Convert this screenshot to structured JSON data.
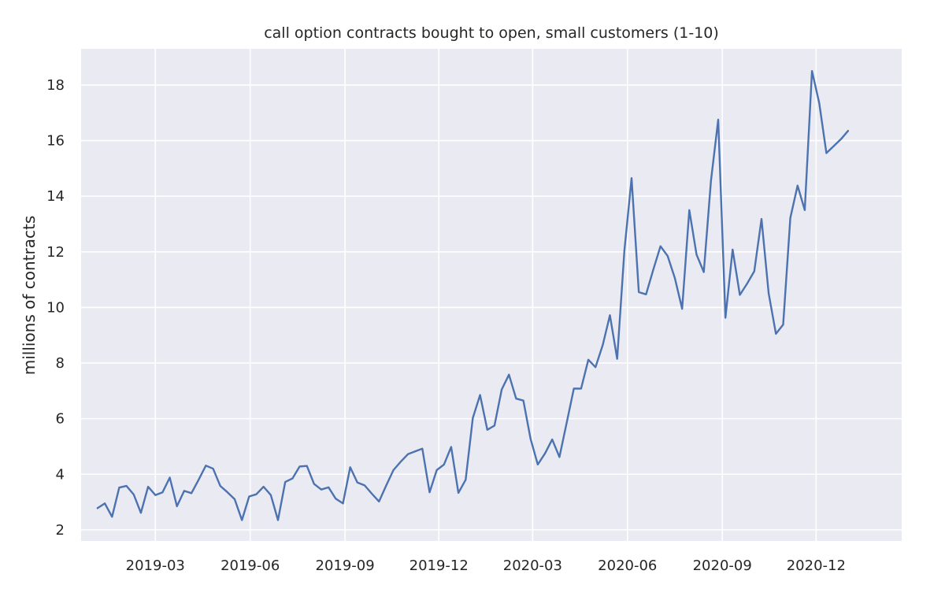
{
  "chart_data": {
    "type": "line",
    "title": "call option contracts bought to open, small customers (1-10)",
    "xlabel": "",
    "ylabel": "millions of contracts",
    "ylim": [
      1.6,
      19.3
    ],
    "xlim": [
      "2018-12-19",
      "2021-02-22"
    ],
    "yticks": [
      2,
      4,
      6,
      8,
      10,
      12,
      14,
      16,
      18
    ],
    "xticks": [
      {
        "date": "2019-03-01",
        "label": "2019-03"
      },
      {
        "date": "2019-06-01",
        "label": "2019-06"
      },
      {
        "date": "2019-09-01",
        "label": "2019-09"
      },
      {
        "date": "2019-12-01",
        "label": "2019-12"
      },
      {
        "date": "2020-03-01",
        "label": "2020-03"
      },
      {
        "date": "2020-06-01",
        "label": "2020-06"
      },
      {
        "date": "2020-09-01",
        "label": "2020-09"
      },
      {
        "date": "2020-12-01",
        "label": "2020-12"
      }
    ],
    "grid": true,
    "colors": {
      "background": "#eaeaf2",
      "grid": "#ffffff",
      "line": "#4c72b0",
      "text": "#262626"
    },
    "series": [
      {
        "name": "small customers (1-10)",
        "x": [
          "2019-01-04",
          "2019-01-11",
          "2019-01-18",
          "2019-01-25",
          "2019-02-01",
          "2019-02-08",
          "2019-02-15",
          "2019-02-22",
          "2019-03-01",
          "2019-03-08",
          "2019-03-15",
          "2019-03-22",
          "2019-03-29",
          "2019-04-05",
          "2019-04-12",
          "2019-04-19",
          "2019-04-26",
          "2019-05-03",
          "2019-05-10",
          "2019-05-17",
          "2019-05-24",
          "2019-05-31",
          "2019-06-07",
          "2019-06-14",
          "2019-06-21",
          "2019-06-28",
          "2019-07-05",
          "2019-07-12",
          "2019-07-19",
          "2019-07-26",
          "2019-08-02",
          "2019-08-09",
          "2019-08-16",
          "2019-08-23",
          "2019-08-30",
          "2019-09-06",
          "2019-09-13",
          "2019-09-20",
          "2019-09-27",
          "2019-10-04",
          "2019-10-11",
          "2019-10-18",
          "2019-10-25",
          "2019-11-01",
          "2019-11-08",
          "2019-11-15",
          "2019-11-22",
          "2019-11-29",
          "2019-12-06",
          "2019-12-13",
          "2019-12-20",
          "2019-12-27",
          "2020-01-03",
          "2020-01-10",
          "2020-01-17",
          "2020-01-24",
          "2020-01-31",
          "2020-02-07",
          "2020-02-14",
          "2020-02-21",
          "2020-02-28",
          "2020-03-06",
          "2020-03-13",
          "2020-03-20",
          "2020-03-27",
          "2020-04-03",
          "2020-04-10",
          "2020-04-17",
          "2020-04-24",
          "2020-05-01",
          "2020-05-08",
          "2020-05-15",
          "2020-05-22",
          "2020-05-29",
          "2020-06-05",
          "2020-06-12",
          "2020-06-19",
          "2020-06-26",
          "2020-07-03",
          "2020-07-10",
          "2020-07-17",
          "2020-07-24",
          "2020-07-31",
          "2020-08-07",
          "2020-08-14",
          "2020-08-21",
          "2020-08-28",
          "2020-09-04",
          "2020-09-11",
          "2020-09-18",
          "2020-09-25",
          "2020-10-02",
          "2020-10-09",
          "2020-10-16",
          "2020-10-23",
          "2020-10-30",
          "2020-11-06",
          "2020-11-13",
          "2020-11-20",
          "2020-11-27",
          "2020-12-04",
          "2020-12-11",
          "2020-12-18",
          "2020-12-25",
          "2021-01-01",
          "2021-01-08",
          "2021-01-15",
          "2021-01-22",
          "2021-01-29",
          "2021-02-05"
        ],
        "values": [
          2.78,
          2.95,
          2.47,
          3.52,
          3.58,
          3.27,
          2.61,
          3.55,
          3.25,
          3.35,
          3.88,
          2.85,
          3.4,
          3.32,
          3.8,
          4.31,
          4.2,
          3.58,
          3.35,
          3.1,
          2.35,
          3.2,
          3.28,
          3.55,
          3.25,
          2.35,
          3.72,
          3.85,
          4.28,
          4.3,
          3.65,
          3.45,
          3.53,
          3.12,
          2.95,
          4.25,
          3.7,
          3.6,
          3.3,
          3.02,
          3.6,
          4.15,
          4.45,
          4.72,
          4.82,
          4.92,
          3.35,
          4.15,
          4.35,
          4.98,
          3.33,
          3.8,
          6.02,
          6.85,
          5.6,
          5.75,
          7.05,
          7.58,
          6.72,
          6.65,
          5.28,
          4.35,
          4.75,
          5.25,
          4.62,
          5.85,
          7.08,
          7.08,
          8.12,
          7.85,
          8.65,
          9.72,
          8.15,
          12.05,
          14.65,
          10.55,
          10.47,
          11.35,
          12.2,
          11.85,
          11.05,
          9.95,
          13.5,
          11.9,
          11.27,
          14.55,
          16.75,
          9.63,
          12.08,
          10.45,
          10.85,
          11.3,
          13.18,
          10.5,
          9.05,
          9.38,
          13.22,
          14.38,
          13.5,
          18.5,
          17.35,
          15.55,
          15.8,
          16.05,
          16.35,
          null,
          null,
          null,
          null,
          null
        ],
        "note": "series ends 2021-01-01"
      }
    ]
  }
}
